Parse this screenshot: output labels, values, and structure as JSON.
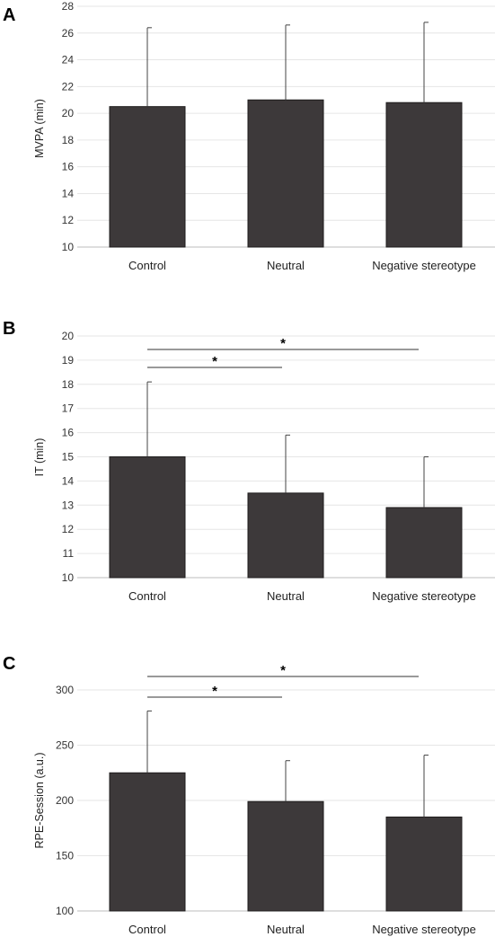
{
  "chart_data": [
    {
      "panel": "A",
      "type": "bar",
      "categories": [
        "Control",
        "Neutral",
        "Negative stereotype"
      ],
      "values": [
        20.5,
        21.0,
        20.8
      ],
      "error_upper": [
        26.4,
        26.6,
        26.8
      ],
      "ylabel": "MVPA (min)",
      "ylim": [
        10,
        28
      ],
      "yticks": [
        10,
        12,
        14,
        16,
        18,
        20,
        22,
        24,
        26,
        28
      ],
      "bar_color": "#3d393a",
      "significance": []
    },
    {
      "panel": "B",
      "type": "bar",
      "categories": [
        "Control",
        "Neutral",
        "Negative stereotype"
      ],
      "values": [
        15.0,
        13.5,
        12.9
      ],
      "error_upper": [
        18.1,
        15.9,
        15.0
      ],
      "ylabel": "IT (min)",
      "ylim": [
        10,
        20
      ],
      "yticks": [
        10,
        11,
        12,
        13,
        14,
        15,
        16,
        17,
        18,
        19,
        20
      ],
      "bar_color": "#3d393a",
      "significance": [
        {
          "from": 0,
          "to": 2,
          "label": "*"
        },
        {
          "from": 0,
          "to": 1,
          "label": "*"
        }
      ]
    },
    {
      "panel": "C",
      "type": "bar",
      "categories": [
        "Control",
        "Neutral",
        "Negative stereotype"
      ],
      "values": [
        225,
        199,
        185
      ],
      "error_upper": [
        281,
        236,
        241
      ],
      "ylabel": "RPE-Session (a.u.)",
      "ylim": [
        100,
        300
      ],
      "yticks": [
        100,
        150,
        200,
        250,
        300
      ],
      "bar_color": "#3d393a",
      "significance": [
        {
          "from": 0,
          "to": 2,
          "label": "*"
        },
        {
          "from": 0,
          "to": 1,
          "label": "*"
        }
      ]
    }
  ]
}
